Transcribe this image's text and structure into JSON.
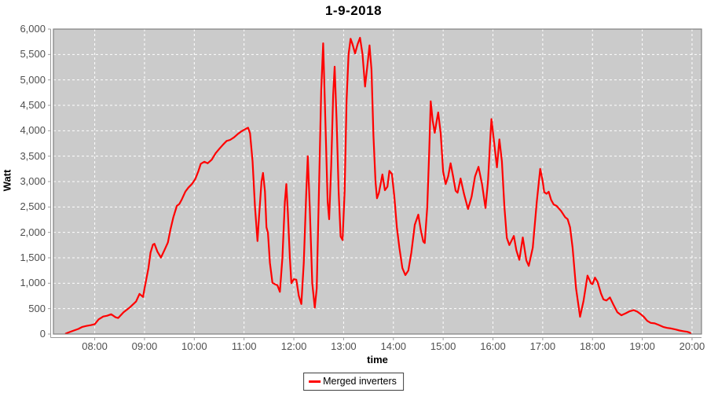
{
  "chart_data": {
    "type": "line",
    "title": "1-9-2018",
    "xlabel": "time",
    "ylabel": "Watt",
    "xlim": [
      7.17,
      20.19
    ],
    "ylim": [
      0,
      6000
    ],
    "grid": true,
    "legend_position": "bottom-center",
    "plot_bg": "#cbcbcb",
    "grid_color": "#ffffff",
    "plot_border_color": "#808080",
    "axis_line_color": "#9b9b9b",
    "tick_label_color": "#4f4f4f",
    "x_ticks": [
      {
        "v": 8,
        "label": "08:00"
      },
      {
        "v": 9,
        "label": "09:00"
      },
      {
        "v": 10,
        "label": "10:00"
      },
      {
        "v": 11,
        "label": "11:00"
      },
      {
        "v": 12,
        "label": "12:00"
      },
      {
        "v": 13,
        "label": "13:00"
      },
      {
        "v": 14,
        "label": "14:00"
      },
      {
        "v": 15,
        "label": "15:00"
      },
      {
        "v": 16,
        "label": "16:00"
      },
      {
        "v": 17,
        "label": "17:00"
      },
      {
        "v": 18,
        "label": "18:00"
      },
      {
        "v": 19,
        "label": "19:00"
      },
      {
        "v": 20,
        "label": "20:00"
      }
    ],
    "y_ticks": [
      {
        "v": 0,
        "label": "0"
      },
      {
        "v": 500,
        "label": "500"
      },
      {
        "v": 1000,
        "label": "1,000"
      },
      {
        "v": 1500,
        "label": "1,500"
      },
      {
        "v": 2000,
        "label": "2,000"
      },
      {
        "v": 2500,
        "label": "2,500"
      },
      {
        "v": 3000,
        "label": "3,000"
      },
      {
        "v": 3500,
        "label": "3,500"
      },
      {
        "v": 4000,
        "label": "4,000"
      },
      {
        "v": 4500,
        "label": "4,500"
      },
      {
        "v": 5000,
        "label": "5,000"
      },
      {
        "v": 5500,
        "label": "5,500"
      },
      {
        "v": 6000,
        "label": "6,000"
      }
    ],
    "series": [
      {
        "name": "Merged inverters",
        "color": "#ff0000",
        "points": [
          [
            7.42,
            10
          ],
          [
            7.5,
            40
          ],
          [
            7.58,
            70
          ],
          [
            7.67,
            100
          ],
          [
            7.75,
            140
          ],
          [
            7.83,
            160
          ],
          [
            7.92,
            175
          ],
          [
            8.0,
            195
          ],
          [
            8.08,
            290
          ],
          [
            8.17,
            345
          ],
          [
            8.25,
            360
          ],
          [
            8.33,
            390
          ],
          [
            8.42,
            330
          ],
          [
            8.47,
            315
          ],
          [
            8.58,
            430
          ],
          [
            8.7,
            520
          ],
          [
            8.83,
            640
          ],
          [
            8.9,
            790
          ],
          [
            8.97,
            730
          ],
          [
            9.0,
            900
          ],
          [
            9.04,
            1100
          ],
          [
            9.08,
            1300
          ],
          [
            9.12,
            1600
          ],
          [
            9.17,
            1760
          ],
          [
            9.2,
            1775
          ],
          [
            9.26,
            1620
          ],
          [
            9.33,
            1505
          ],
          [
            9.4,
            1650
          ],
          [
            9.47,
            1800
          ],
          [
            9.52,
            2050
          ],
          [
            9.58,
            2300
          ],
          [
            9.65,
            2520
          ],
          [
            9.7,
            2560
          ],
          [
            9.75,
            2650
          ],
          [
            9.82,
            2800
          ],
          [
            9.88,
            2880
          ],
          [
            9.95,
            2950
          ],
          [
            10.02,
            3050
          ],
          [
            10.08,
            3200
          ],
          [
            10.13,
            3350
          ],
          [
            10.2,
            3390
          ],
          [
            10.27,
            3360
          ],
          [
            10.35,
            3430
          ],
          [
            10.43,
            3560
          ],
          [
            10.5,
            3640
          ],
          [
            10.58,
            3730
          ],
          [
            10.65,
            3800
          ],
          [
            10.72,
            3820
          ],
          [
            10.8,
            3870
          ],
          [
            10.88,
            3940
          ],
          [
            10.95,
            3990
          ],
          [
            11.02,
            4030
          ],
          [
            11.08,
            4060
          ],
          [
            11.12,
            3950
          ],
          [
            11.17,
            3400
          ],
          [
            11.22,
            2500
          ],
          [
            11.27,
            1830
          ],
          [
            11.3,
            2300
          ],
          [
            11.35,
            3000
          ],
          [
            11.38,
            3170
          ],
          [
            11.42,
            2800
          ],
          [
            11.45,
            2100
          ],
          [
            11.48,
            1990
          ],
          [
            11.52,
            1400
          ],
          [
            11.57,
            1010
          ],
          [
            11.62,
            980
          ],
          [
            11.67,
            960
          ],
          [
            11.72,
            830
          ],
          [
            11.77,
            1500
          ],
          [
            11.82,
            2600
          ],
          [
            11.85,
            2950
          ],
          [
            11.88,
            2400
          ],
          [
            11.92,
            1500
          ],
          [
            11.95,
            1000
          ],
          [
            12.0,
            1080
          ],
          [
            12.05,
            1070
          ],
          [
            12.1,
            750
          ],
          [
            12.15,
            590
          ],
          [
            12.2,
            1400
          ],
          [
            12.25,
            2800
          ],
          [
            12.28,
            3500
          ],
          [
            12.32,
            2500
          ],
          [
            12.37,
            1000
          ],
          [
            12.42,
            520
          ],
          [
            12.46,
            900
          ],
          [
            12.5,
            2600
          ],
          [
            12.55,
            4800
          ],
          [
            12.59,
            5720
          ],
          [
            12.63,
            4300
          ],
          [
            12.68,
            2600
          ],
          [
            12.71,
            2260
          ],
          [
            12.75,
            3300
          ],
          [
            12.79,
            4700
          ],
          [
            12.82,
            5260
          ],
          [
            12.86,
            4200
          ],
          [
            12.9,
            2800
          ],
          [
            12.94,
            1920
          ],
          [
            12.98,
            1850
          ],
          [
            13.02,
            2800
          ],
          [
            13.06,
            4600
          ],
          [
            13.1,
            5500
          ],
          [
            13.14,
            5810
          ],
          [
            13.18,
            5700
          ],
          [
            13.23,
            5520
          ],
          [
            13.28,
            5700
          ],
          [
            13.33,
            5830
          ],
          [
            13.38,
            5500
          ],
          [
            13.43,
            4870
          ],
          [
            13.48,
            5300
          ],
          [
            13.52,
            5680
          ],
          [
            13.56,
            5200
          ],
          [
            13.6,
            3900
          ],
          [
            13.64,
            3000
          ],
          [
            13.67,
            2670
          ],
          [
            13.71,
            2780
          ],
          [
            13.78,
            3140
          ],
          [
            13.83,
            2830
          ],
          [
            13.88,
            2900
          ],
          [
            13.92,
            3210
          ],
          [
            13.97,
            3150
          ],
          [
            14.02,
            2700
          ],
          [
            14.07,
            2100
          ],
          [
            14.12,
            1700
          ],
          [
            14.18,
            1300
          ],
          [
            14.24,
            1160
          ],
          [
            14.3,
            1250
          ],
          [
            14.36,
            1600
          ],
          [
            14.43,
            2150
          ],
          [
            14.5,
            2350
          ],
          [
            14.55,
            2050
          ],
          [
            14.6,
            1820
          ],
          [
            14.63,
            1790
          ],
          [
            14.68,
            2500
          ],
          [
            14.72,
            3600
          ],
          [
            14.75,
            4580
          ],
          [
            14.79,
            4200
          ],
          [
            14.83,
            3960
          ],
          [
            14.88,
            4250
          ],
          [
            14.9,
            4360
          ],
          [
            14.95,
            3950
          ],
          [
            15.0,
            3200
          ],
          [
            15.05,
            2950
          ],
          [
            15.1,
            3100
          ],
          [
            15.15,
            3360
          ],
          [
            15.2,
            3100
          ],
          [
            15.25,
            2820
          ],
          [
            15.29,
            2780
          ],
          [
            15.35,
            3060
          ],
          [
            15.42,
            2750
          ],
          [
            15.5,
            2460
          ],
          [
            15.57,
            2700
          ],
          [
            15.64,
            3100
          ],
          [
            15.71,
            3290
          ],
          [
            15.78,
            2950
          ],
          [
            15.85,
            2480
          ],
          [
            15.9,
            3000
          ],
          [
            15.95,
            3900
          ],
          [
            15.97,
            4230
          ],
          [
            16.02,
            3800
          ],
          [
            16.08,
            3280
          ],
          [
            16.13,
            3830
          ],
          [
            16.18,
            3400
          ],
          [
            16.23,
            2500
          ],
          [
            16.28,
            1890
          ],
          [
            16.33,
            1750
          ],
          [
            16.42,
            1930
          ],
          [
            16.47,
            1650
          ],
          [
            16.53,
            1460
          ],
          [
            16.6,
            1900
          ],
          [
            16.67,
            1450
          ],
          [
            16.72,
            1340
          ],
          [
            16.8,
            1700
          ],
          [
            16.88,
            2600
          ],
          [
            16.95,
            3250
          ],
          [
            17.0,
            3000
          ],
          [
            17.03,
            2790
          ],
          [
            17.08,
            2760
          ],
          [
            17.12,
            2800
          ],
          [
            17.17,
            2640
          ],
          [
            17.22,
            2550
          ],
          [
            17.28,
            2520
          ],
          [
            17.37,
            2420
          ],
          [
            17.45,
            2300
          ],
          [
            17.5,
            2260
          ],
          [
            17.55,
            2100
          ],
          [
            17.6,
            1700
          ],
          [
            17.67,
            900
          ],
          [
            17.75,
            340
          ],
          [
            17.82,
            650
          ],
          [
            17.9,
            1150
          ],
          [
            17.97,
            1000
          ],
          [
            18.0,
            980
          ],
          [
            18.05,
            1110
          ],
          [
            18.1,
            1030
          ],
          [
            18.17,
            800
          ],
          [
            18.22,
            680
          ],
          [
            18.28,
            660
          ],
          [
            18.35,
            720
          ],
          [
            18.42,
            580
          ],
          [
            18.5,
            430
          ],
          [
            18.58,
            370
          ],
          [
            18.67,
            410
          ],
          [
            18.75,
            450
          ],
          [
            18.83,
            470
          ],
          [
            18.9,
            440
          ],
          [
            18.97,
            390
          ],
          [
            19.03,
            340
          ],
          [
            19.1,
            260
          ],
          [
            19.17,
            220
          ],
          [
            19.25,
            210
          ],
          [
            19.33,
            180
          ],
          [
            19.42,
            140
          ],
          [
            19.5,
            120
          ],
          [
            19.58,
            110
          ],
          [
            19.67,
            90
          ],
          [
            19.75,
            70
          ],
          [
            19.83,
            55
          ],
          [
            19.9,
            45
          ],
          [
            19.95,
            30
          ],
          [
            19.97,
            15
          ]
        ]
      }
    ]
  }
}
